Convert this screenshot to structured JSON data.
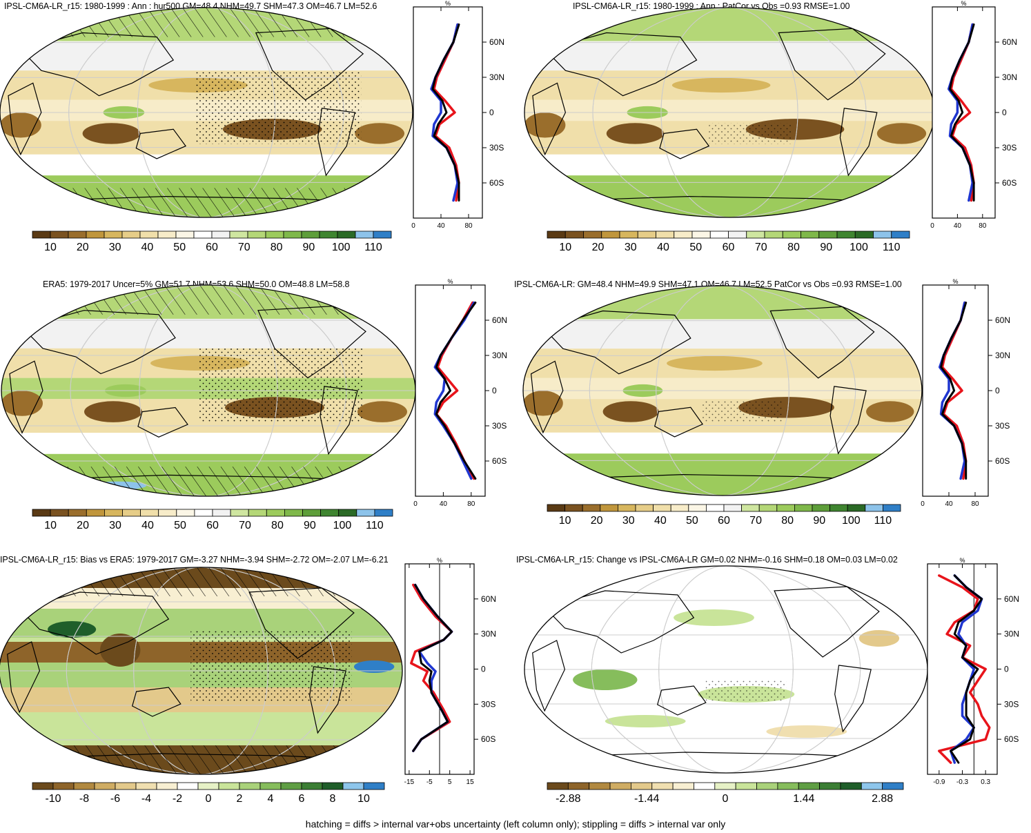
{
  "footnote": "hatching = diffs > internal var+obs uncertainty (left column only); stippling = diffs > internal var only",
  "colors": {
    "brown_scale": [
      "#5a3a14",
      "#7a5220",
      "#9a6e2c",
      "#c0963c",
      "#d7b65e",
      "#e6cd88",
      "#f0dfaa",
      "#f7ecc9",
      "#fbf6e6",
      "#ffffff",
      "#f2f2f2",
      "#cfe6a0",
      "#b4d777",
      "#9ccb5c",
      "#7fb84a",
      "#5e9e3a",
      "#3f8530",
      "#2b6a26",
      "#8dc3ea",
      "#2f7fc7"
    ],
    "ocean_scale": [
      "#6b4a1c",
      "#8e642a",
      "#b18940",
      "#cfac63",
      "#e3c98b",
      "#f0dfb0",
      "#f8efd2",
      "#ffffff",
      "#e6f1c6",
      "#c9e49a",
      "#a9d27a",
      "#86bd5c",
      "#5f9e44",
      "#3b7e34",
      "#1f5e2a",
      "#8ec6ec",
      "#2f7fc7"
    ],
    "red": "#e8141b",
    "blue": "#1f36d0",
    "black": "#000000"
  },
  "panels": [
    {
      "title": "IPSL-CM6A-LR_r15: 1980-1999 : Ann : hur500 GM=48.4 NHM=49.7 SHM=47.3 OM=46.7 LM=52.6",
      "colorbar_labels": [
        "10",
        "20",
        "30",
        "40",
        "50",
        "60",
        "70",
        "80",
        "90",
        "100",
        "110"
      ],
      "profile_unit": "%",
      "profile_x_ticks": [
        "0",
        "40",
        "80"
      ],
      "profile_y_ticks": [
        "60N",
        "30N",
        "0",
        "30S",
        "60S"
      ]
    },
    {
      "title": "IPSL-CM6A-LR_r15: 1980-1999 : Ann : PatCor vs Obs =0.93 RMSE=1.00",
      "colorbar_labels": [
        "10",
        "20",
        "30",
        "40",
        "50",
        "60",
        "70",
        "80",
        "90",
        "100",
        "110"
      ],
      "profile_unit": "%",
      "profile_x_ticks": [
        "0",
        "40",
        "80"
      ],
      "profile_y_ticks": [
        "60N",
        "30N",
        "0",
        "30S",
        "60S"
      ]
    },
    {
      "title": "ERA5: 1979-2017 Uncer=5% GM=51.7 NHM=53.6 SHM=50.0 OM=48.8 LM=58.8",
      "colorbar_labels": [
        "10",
        "20",
        "30",
        "40",
        "50",
        "60",
        "70",
        "80",
        "90",
        "100",
        "110"
      ],
      "profile_unit": "%",
      "profile_x_ticks": [
        "0",
        "40",
        "80"
      ],
      "profile_y_ticks": [
        "60N",
        "30N",
        "0",
        "30S",
        "60S"
      ]
    },
    {
      "title": "IPSL-CM6A-LR: GM=48.4 NHM=49.9 SHM=47.1 OM=46.7 LM=52.5 PatCor vs Obs =0.93 RMSE=1.00",
      "colorbar_labels": [
        "10",
        "20",
        "30",
        "40",
        "50",
        "60",
        "70",
        "80",
        "90",
        "100",
        "110"
      ],
      "profile_unit": "%",
      "profile_x_ticks": [
        "0",
        "40",
        "80"
      ],
      "profile_y_ticks": [
        "60N",
        "30N",
        "0",
        "30S",
        "60S"
      ]
    },
    {
      "title": "IPSL-CM6A-LR_r15: Bias vs ERA5: 1979-2017 GM=-3.27 NHM=-3.94 SHM=-2.72 OM=-2.07 LM=-6.21",
      "colorbar_labels": [
        "-10",
        "-8",
        "-6",
        "-4",
        "-2",
        "0",
        "2",
        "4",
        "6",
        "8",
        "10"
      ],
      "profile_unit": "%",
      "profile_x_ticks": [
        "-15",
        "-5",
        "5",
        "15"
      ],
      "profile_y_ticks": [
        "60N",
        "30N",
        "0",
        "30S",
        "60S"
      ]
    },
    {
      "title": "IPSL-CM6A-LR_r15: Change vs IPSL-CM6A-LR GM=0.02 NHM=-0.16 SHM=0.18 OM=0.03 LM=0.02",
      "colorbar_labels": [
        "-2.88",
        "-1.44",
        "0",
        "1.44",
        "2.88"
      ],
      "profile_unit": "%",
      "profile_x_ticks": [
        "-0.9",
        "-0.3",
        "0.3"
      ],
      "profile_y_ticks": [
        "60N",
        "30N",
        "0",
        "30S",
        "60S"
      ]
    }
  ],
  "chart_data": [
    {
      "type": "line",
      "panel": "IPSL-CM6A-LR_r15 annual hur500 zonal mean",
      "xlabel": "%",
      "xlim": [
        0,
        100
      ],
      "ylim": [
        -90,
        90
      ],
      "series": [
        {
          "color": "red",
          "y": [
            -75,
            -60,
            -45,
            -30,
            -20,
            -10,
            0,
            10,
            20,
            30,
            45,
            60,
            75
          ],
          "x": [
            62,
            66,
            62,
            52,
            32,
            38,
            60,
            46,
            30,
            34,
            46,
            58,
            64
          ]
        },
        {
          "color": "blue",
          "y": [
            -75,
            -60,
            -45,
            -30,
            -20,
            -10,
            0,
            10,
            20,
            30,
            45,
            60,
            75
          ],
          "x": [
            58,
            64,
            60,
            48,
            28,
            30,
            40,
            40,
            26,
            32,
            44,
            58,
            64
          ]
        },
        {
          "color": "black",
          "y": [
            -75,
            -60,
            -45,
            -30,
            -20,
            -10,
            0,
            10,
            20,
            30,
            45,
            60,
            75
          ],
          "x": [
            66,
            66,
            60,
            48,
            30,
            36,
            48,
            42,
            28,
            32,
            44,
            58,
            66
          ]
        }
      ]
    },
    {
      "type": "line",
      "panel": "IPSL-CM6A-LR_r15 1980-1999 PatCor vs Obs zonal mean",
      "xlabel": "%",
      "xlim": [
        0,
        100
      ],
      "ylim": [
        -90,
        90
      ],
      "series": [
        {
          "color": "red",
          "y": [
            -75,
            -60,
            -45,
            -30,
            -20,
            -10,
            0,
            10,
            20,
            30,
            45,
            60,
            75
          ],
          "x": [
            62,
            66,
            62,
            52,
            32,
            38,
            60,
            46,
            30,
            34,
            46,
            58,
            64
          ]
        },
        {
          "color": "blue",
          "y": [
            -75,
            -60,
            -45,
            -30,
            -20,
            -10,
            0,
            10,
            20,
            30,
            45,
            60,
            75
          ],
          "x": [
            58,
            64,
            60,
            48,
            28,
            30,
            40,
            40,
            26,
            32,
            44,
            58,
            64
          ]
        },
        {
          "color": "black",
          "y": [
            -75,
            -60,
            -45,
            -30,
            -20,
            -10,
            0,
            10,
            20,
            30,
            45,
            60,
            75
          ],
          "x": [
            66,
            66,
            60,
            48,
            30,
            36,
            48,
            42,
            28,
            32,
            44,
            58,
            66
          ]
        }
      ]
    },
    {
      "type": "line",
      "panel": "ERA5 1979-2017 zonal mean",
      "xlabel": "%",
      "xlim": [
        0,
        100
      ],
      "ylim": [
        -90,
        90
      ],
      "series": [
        {
          "color": "red",
          "y": [
            -75,
            -60,
            -45,
            -30,
            -20,
            -10,
            0,
            10,
            20,
            30,
            45,
            60,
            75
          ],
          "x": [
            84,
            70,
            58,
            44,
            30,
            40,
            60,
            46,
            32,
            38,
            52,
            68,
            82
          ]
        },
        {
          "color": "blue",
          "y": [
            -75,
            -60,
            -45,
            -30,
            -20,
            -10,
            0,
            10,
            20,
            30,
            45,
            60,
            75
          ],
          "x": [
            80,
            68,
            56,
            40,
            28,
            30,
            40,
            42,
            28,
            36,
            52,
            70,
            84
          ]
        },
        {
          "color": "black",
          "y": [
            -75,
            -60,
            -45,
            -30,
            -20,
            -10,
            0,
            10,
            20,
            30,
            45,
            60,
            75
          ],
          "x": [
            86,
            70,
            56,
            42,
            30,
            36,
            50,
            42,
            30,
            36,
            52,
            68,
            86
          ]
        }
      ]
    },
    {
      "type": "line",
      "panel": "IPSL-CM6A-LR ensemble zonal mean",
      "xlabel": "%",
      "xlim": [
        0,
        100
      ],
      "ylim": [
        -90,
        90
      ],
      "series": [
        {
          "color": "red",
          "y": [
            -75,
            -60,
            -45,
            -30,
            -20,
            -10,
            0,
            10,
            20,
            30,
            45,
            60,
            75
          ],
          "x": [
            62,
            66,
            62,
            52,
            32,
            38,
            60,
            46,
            30,
            34,
            46,
            58,
            64
          ]
        },
        {
          "color": "blue",
          "y": [
            -75,
            -60,
            -45,
            -30,
            -20,
            -10,
            0,
            10,
            20,
            30,
            45,
            60,
            75
          ],
          "x": [
            58,
            64,
            60,
            48,
            28,
            30,
            40,
            40,
            26,
            32,
            44,
            58,
            64
          ]
        },
        {
          "color": "black",
          "y": [
            -75,
            -60,
            -45,
            -30,
            -20,
            -10,
            0,
            10,
            20,
            30,
            45,
            60,
            75
          ],
          "x": [
            66,
            66,
            60,
            48,
            30,
            36,
            48,
            42,
            28,
            32,
            44,
            58,
            66
          ]
        }
      ]
    },
    {
      "type": "line",
      "panel": "Bias vs ERA5 zonal mean",
      "xlabel": "%",
      "xlim": [
        -17,
        17
      ],
      "ylim": [
        -90,
        90
      ],
      "series": [
        {
          "color": "red",
          "y": [
            -70,
            -60,
            -45,
            -35,
            -20,
            -10,
            -2,
            5,
            15,
            25,
            32,
            45,
            60,
            72
          ],
          "x": [
            -13,
            -9,
            5,
            2,
            -3,
            -8,
            -6,
            -14,
            -12,
            2,
            6,
            -2,
            -9,
            -13
          ]
        },
        {
          "color": "blue",
          "y": [
            -70,
            -60,
            -45,
            -35,
            -20,
            -10,
            -2,
            5,
            15,
            25,
            32,
            45,
            60,
            72
          ],
          "x": [
            -13,
            -9,
            4,
            1,
            -4,
            -4,
            -2,
            -6,
            -10,
            2,
            6,
            -1,
            -8,
            -12
          ]
        },
        {
          "color": "black",
          "y": [
            -70,
            -60,
            -45,
            -35,
            -20,
            -10,
            -2,
            5,
            15,
            25,
            32,
            45,
            60,
            72
          ],
          "x": [
            -13,
            -9,
            4,
            1,
            -4,
            -5,
            -4,
            -9,
            -10,
            2,
            6,
            -1,
            -8,
            -12
          ]
        }
      ]
    },
    {
      "type": "line",
      "panel": "Change vs IPSL-CM6A-LR zonal mean",
      "xlabel": "%",
      "xlim": [
        -1.2,
        0.6
      ],
      "ylim": [
        -90,
        90
      ],
      "series": [
        {
          "color": "red",
          "y": [
            -80,
            -70,
            -60,
            -50,
            -40,
            -30,
            -20,
            -10,
            0,
            10,
            20,
            30,
            40,
            50,
            60,
            70,
            80
          ],
          "x": [
            -0.6,
            -0.9,
            0.3,
            0.4,
            0.2,
            0.1,
            -0.1,
            0.1,
            0.3,
            -0.3,
            -0.1,
            -0.7,
            -0.5,
            0.0,
            0.1,
            -0.3,
            -0.9
          ]
        },
        {
          "color": "blue",
          "y": [
            -80,
            -70,
            -60,
            -50,
            -40,
            -30,
            -20,
            -10,
            0,
            10,
            20,
            30,
            40,
            50,
            60,
            70,
            80
          ],
          "x": [
            -0.5,
            -0.6,
            -0.2,
            0.0,
            -0.3,
            -0.3,
            -0.2,
            -0.1,
            0.0,
            -0.3,
            -0.2,
            -0.4,
            -0.3,
            0.1,
            0.2,
            -0.2,
            -0.5
          ]
        },
        {
          "color": "black",
          "y": [
            -80,
            -70,
            -60,
            -50,
            -40,
            -30,
            -20,
            -10,
            0,
            10,
            20,
            30,
            40,
            50,
            60,
            70,
            80
          ],
          "x": [
            -0.4,
            -0.6,
            -0.1,
            0.0,
            -0.2,
            -0.2,
            -0.2,
            -0.1,
            0.1,
            -0.3,
            -0.2,
            -0.5,
            -0.4,
            0.0,
            0.2,
            -0.2,
            -0.5
          ]
        }
      ]
    }
  ]
}
